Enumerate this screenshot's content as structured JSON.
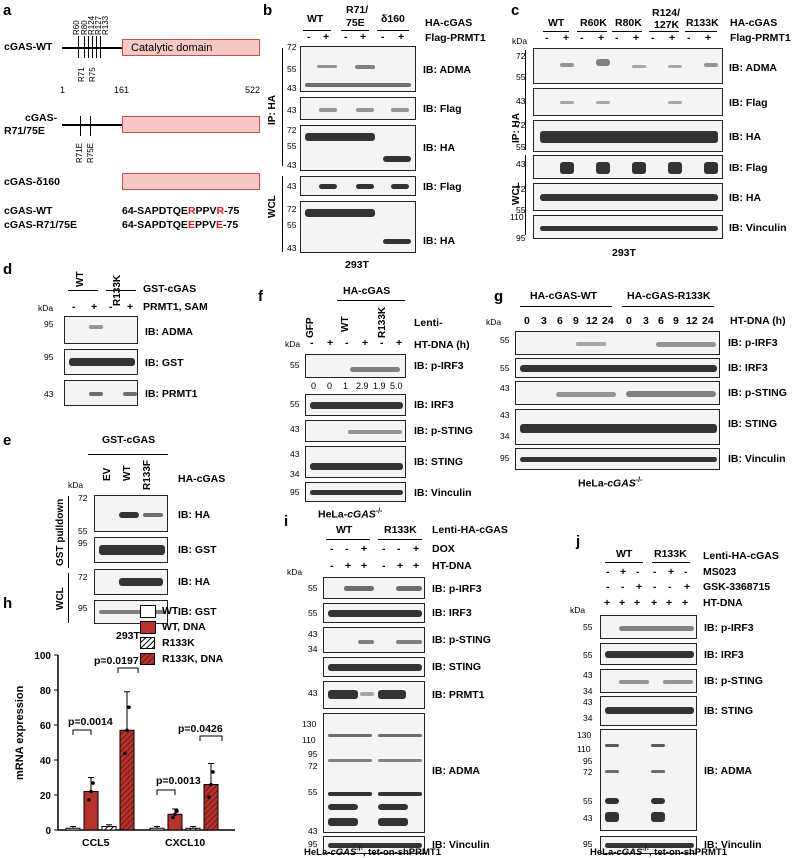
{
  "panel_letters": [
    "a",
    "b",
    "c",
    "d",
    "e",
    "f",
    "g",
    "h",
    "i",
    "j"
  ],
  "a": {
    "row_wt": "cGAS-WT",
    "row_mut": "cGAS-\nR71/75E",
    "row_mut_l1": "cGAS-",
    "row_mut_l2": "R71/75E",
    "row_d160": "cGAS-δ160",
    "domain": "Catalytic domain",
    "pos_1": "1",
    "pos_161": "161",
    "pos_522": "522",
    "sites_top": [
      "R60",
      "R80",
      "R124",
      "R127",
      "R133"
    ],
    "sites_bottom": [
      "R71",
      "R75"
    ],
    "sites_mut": [
      "R71E",
      "R75E"
    ],
    "seq_wt_label": "cGAS-WT",
    "seq_mut_label": "cGAS-R71/75E",
    "seq_wt": [
      "64-SAPDTQE",
      "R",
      "PPV",
      "R",
      "-75"
    ],
    "seq_mut": [
      "64-SAPDTQE",
      "E",
      "PPV",
      "E",
      "-75"
    ]
  },
  "b": {
    "cols": [
      "WT",
      "R71/\n75E",
      "δ160"
    ],
    "col1": "WT",
    "col2a": "R71/",
    "col2b": "75E",
    "col3": "δ160",
    "row1": "HA-cGAS",
    "row2": "Flag-PRMT1",
    "pm": [
      "-",
      "+",
      "-",
      "+",
      "-",
      "+"
    ],
    "side_ip": "IP: HA",
    "side_wcl": "WCL",
    "ib": [
      "IB: ADMA",
      "IB: Flag",
      "IB: HA",
      "IB: Flag",
      "IB: HA"
    ],
    "mw": [
      "72",
      "55",
      "43",
      "43",
      "72",
      "55",
      "43",
      "43",
      "72",
      "55",
      "43"
    ],
    "footer": "293T"
  },
  "c": {
    "cols": [
      "WT",
      "R60K",
      "R80K",
      "R124/\n127K",
      "R133K"
    ],
    "col1": "WT",
    "col2": "R60K",
    "col3": "R80K",
    "col4a": "R124/",
    "col4b": "127K",
    "col5": "R133K",
    "row1": "HA-cGAS",
    "row2": "Flag-PRMT1",
    "kda": "kDa",
    "pm": [
      "-",
      "+",
      "-",
      "+",
      "-",
      "+",
      "-",
      "+",
      "-",
      "+"
    ],
    "side_ip": "IP: HA",
    "side_wcl": "WCL",
    "ib": [
      "IB: ADMA",
      "IB: Flag",
      "IB: HA",
      "IB: Flag",
      "IB: HA",
      "IB: Vinculin"
    ],
    "mw": [
      "72",
      "55",
      "43",
      "72",
      "55",
      "43",
      "72",
      "55",
      "110",
      "95"
    ],
    "footer": "293T"
  },
  "d": {
    "col1": "WT",
    "col2": "R133K",
    "row1": "GST-cGAS",
    "row2": "PRMT1, SAM",
    "kda": "kDa",
    "pm": [
      "-",
      "+",
      "-",
      "+"
    ],
    "ib": [
      "IB: ADMA",
      "IB: GST",
      "IB: PRMT1"
    ],
    "mw": [
      "95",
      "95",
      "43"
    ]
  },
  "e": {
    "top": "GST-cGAS",
    "cols": [
      "EV",
      "WT",
      "R133F"
    ],
    "row": "HA-cGAS",
    "kda": "kDa",
    "side_gst": "GST pulldown",
    "side_wcl": "WCL",
    "ib": [
      "IB: HA",
      "IB: GST",
      "IB: HA",
      "IB: GST"
    ],
    "mw": [
      "72",
      "55",
      "95",
      "72",
      "95"
    ],
    "footer": "293T"
  },
  "f": {
    "top": "HA-cGAS",
    "cols": [
      "GFP",
      "WT",
      "R133K"
    ],
    "row1": "Lenti-",
    "row2": "HT-DNA (h)",
    "kda": "kDa",
    "pm": [
      "-",
      "+",
      "-",
      "+",
      "-",
      "+"
    ],
    "quant": [
      "0",
      "0",
      "1",
      "2.9",
      "1.9",
      "5.0"
    ],
    "ib": [
      "IB: p-IRF3",
      "IB: IRF3",
      "IB: p-STING",
      "IB: STING",
      "IB: Vinculin"
    ],
    "mw": [
      "55",
      "55",
      "43",
      "43",
      "34",
      "95"
    ],
    "footer_a": "HeLa-",
    "footer_b": "cGAS",
    "footer_c": "-/-"
  },
  "g": {
    "group1": "HA-cGAS-WT",
    "group2": "HA-cGAS-R133K",
    "row": "HT-DNA (h)",
    "kda": "kDa",
    "times": [
      "0",
      "3",
      "6",
      "9",
      "12",
      "24",
      "0",
      "3",
      "6",
      "9",
      "12",
      "24"
    ],
    "ib": [
      "IB: p-IRF3",
      "IB: IRF3",
      "IB: p-STING",
      "IB: STING",
      "IB: Vinculin"
    ],
    "mw": [
      "55",
      "55",
      "43",
      "43",
      "34",
      "95"
    ],
    "footer_a": "HeLa-",
    "footer_b": "cGAS",
    "footer_c": "-/-"
  },
  "h": {
    "legend": [
      "WT",
      "WT, DNA",
      "R133K",
      "R133K, DNA"
    ],
    "pvals": [
      "p=0.0197",
      "p=0.0014",
      "p=0.0426",
      "p=0.0013"
    ],
    "ylabel": "mRNA expression",
    "yticks": [
      "0",
      "20",
      "40",
      "60",
      "80",
      "100"
    ]
  },
  "i": {
    "col1": "WT",
    "col2": "R133K",
    "row1": "Lenti-HA-cGAS",
    "row2": "DOX",
    "row3": "HT-DNA",
    "kda": "kDa",
    "dox": [
      "-",
      "-",
      "+",
      "-",
      "-",
      "+"
    ],
    "dna": [
      "-",
      "+",
      "+",
      "-",
      "+",
      "+"
    ],
    "ib": [
      "IB: p-IRF3",
      "IB: IRF3",
      "IB: p-STING",
      "IB: STING",
      "IB: PRMT1",
      "IB: ADMA",
      "IB: Vinculin"
    ],
    "mw": [
      "55",
      "55",
      "43",
      "34",
      "43",
      "130",
      "110",
      "95",
      "72",
      "55",
      "43",
      "95"
    ],
    "footer_a": "HeLa-",
    "footer_b": "cGAS",
    "footer_c": "-/-",
    "footer_d": ", tet-on-shPRMT1"
  },
  "j": {
    "col1": "WT",
    "col2": "R133K",
    "row1": "Lenti-HA-cGAS",
    "row2": "MS023",
    "row3": "GSK-3368715",
    "row4": "HT-DNA",
    "kda": "kDa",
    "ms": [
      "-",
      "+",
      "-",
      "-",
      "+",
      "-"
    ],
    "gsk": [
      "-",
      "-",
      "+",
      "-",
      "-",
      "+"
    ],
    "dna": [
      "+",
      "+",
      "+",
      "+",
      "+",
      "+"
    ],
    "ib": [
      "IB: p-IRF3",
      "IB: IRF3",
      "IB: p-STING",
      "IB: STING",
      "IB: ADMA",
      "IB: Vinculin"
    ],
    "mw": [
      "55",
      "55",
      "43",
      "34",
      "43",
      "34",
      "130",
      "110",
      "95",
      "72",
      "55",
      "43",
      "95"
    ],
    "footer_a": "HeLa-",
    "footer_b": "cGAS",
    "footer_c": "-/-",
    "footer_d": ", tet-on-shPRMT1"
  },
  "chart_data": {
    "type": "bar",
    "categories": [
      "CCL5",
      "CXCL10"
    ],
    "ylabel": "mRNA expression",
    "ylim": [
      0,
      100
    ],
    "series": [
      {
        "name": "WT",
        "values": [
          1,
          1
        ],
        "color": "#ffffff"
      },
      {
        "name": "WT, DNA",
        "values": [
          22,
          9
        ],
        "color": "#b8322c"
      },
      {
        "name": "R133K",
        "values": [
          2,
          1
        ],
        "color": "hatched"
      },
      {
        "name": "R133K, DNA",
        "values": [
          57,
          26
        ],
        "color": "#b8322c-hatched"
      }
    ],
    "errors": [
      [
        1,
        1
      ],
      [
        8,
        3
      ],
      [
        1,
        1
      ],
      [
        22,
        12
      ]
    ],
    "annotations": [
      "p=0.0197",
      "p=0.0014",
      "p=0.0426",
      "p=0.0013"
    ]
  }
}
